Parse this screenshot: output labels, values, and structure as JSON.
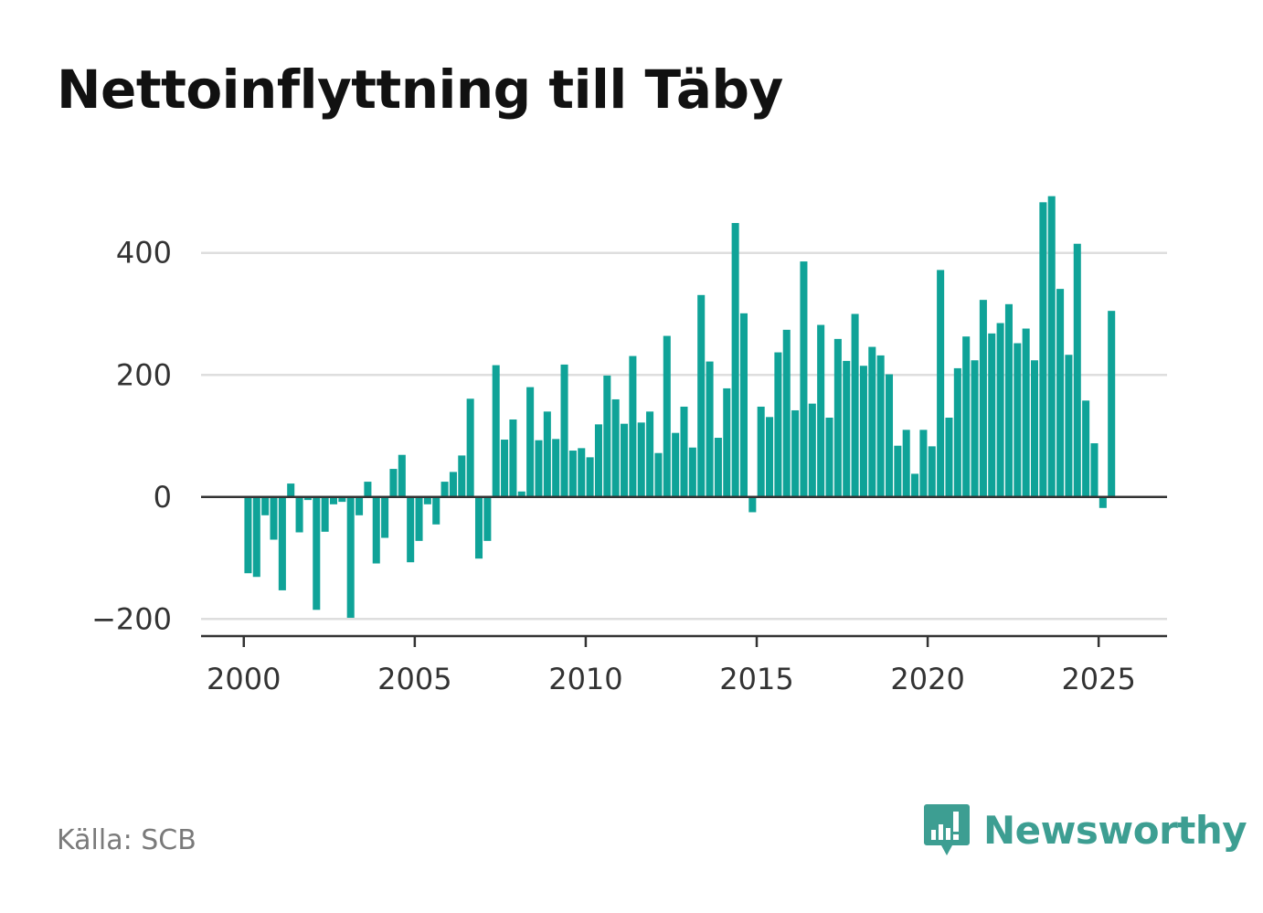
{
  "title": "Nettoinflyttning till Täby",
  "source": "Källa: SCB",
  "brand": {
    "name": "Newsworthy",
    "icon": "bar-chart-speech-icon",
    "color": "#3d9e92"
  },
  "chart_data": {
    "type": "bar",
    "x_start": 2000.0,
    "x_step": 0.25,
    "x_ticks": [
      2000,
      2005,
      2010,
      2015,
      2020,
      2025
    ],
    "x_tick_labels": [
      "2000",
      "2005",
      "2010",
      "2015",
      "2020",
      "2025"
    ],
    "y_ticks": [
      -200,
      0,
      200,
      400
    ],
    "y_tick_labels": [
      "−200",
      "0",
      "200",
      "400"
    ],
    "ylim": [
      -228,
      470
    ],
    "xlim": [
      1998.75,
      2027.0
    ],
    "bar_color": "#0fa398",
    "grid": true,
    "values": [
      -125,
      -131,
      -30,
      -70,
      -153,
      22,
      -58,
      -5,
      -185,
      -57,
      -12,
      -8,
      -198,
      -30,
      25,
      -109,
      -67,
      46,
      69,
      -107,
      -72,
      -12,
      -45,
      25,
      41,
      68,
      161,
      -101,
      -72,
      216,
      94,
      127,
      9,
      180,
      93,
      140,
      95,
      217,
      76,
      80,
      65,
      119,
      199,
      160,
      120,
      231,
      122,
      140,
      72,
      264,
      105,
      148,
      81,
      331,
      222,
      97,
      178,
      449,
      301,
      -25,
      148,
      131,
      237,
      274,
      142,
      386,
      153,
      282,
      130,
      259,
      223,
      300,
      215,
      246,
      232,
      201,
      84,
      110,
      38,
      110,
      83,
      372,
      130,
      211,
      263,
      224,
      323,
      268,
      285,
      316,
      252,
      276,
      224,
      483,
      493,
      341,
      233,
      415,
      158,
      88,
      -18,
      305
    ]
  }
}
